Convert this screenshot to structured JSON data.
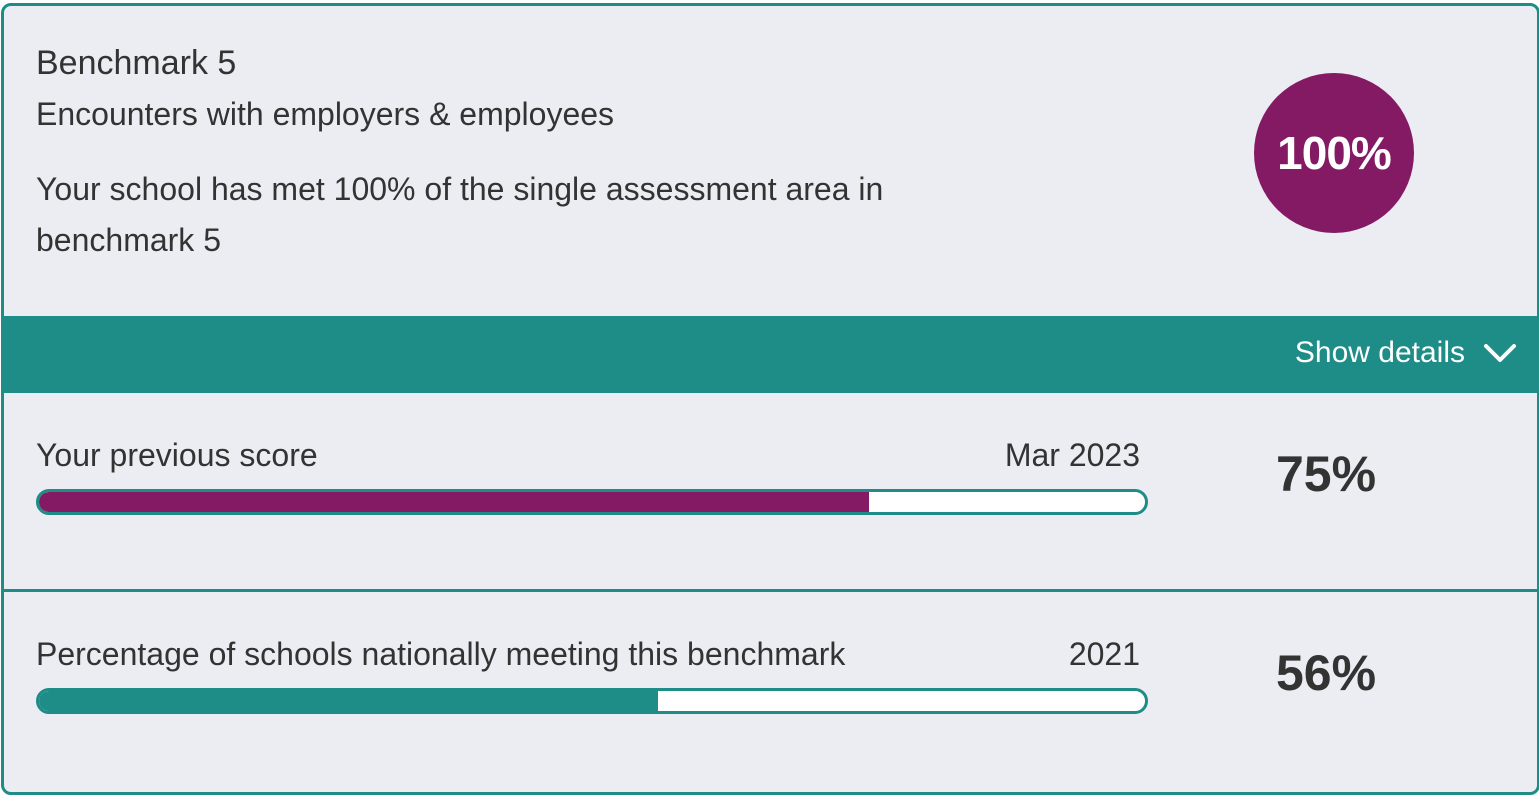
{
  "card": {
    "title": "Benchmark 5",
    "subtitle": "Encounters with employers & employees",
    "description": "Your school has met 100% of the single assessment area in benchmark 5",
    "badge": "100%",
    "toggle": "Show details",
    "rows": [
      {
        "label": "Your previous score",
        "date": "Mar 2023",
        "value": 75,
        "value_label": "75%",
        "color": "#841a63"
      },
      {
        "label": "Percentage of schools nationally meeting this benchmark",
        "date": "2021",
        "value": 56,
        "value_label": "56%",
        "color": "#1e8c87"
      }
    ]
  }
}
